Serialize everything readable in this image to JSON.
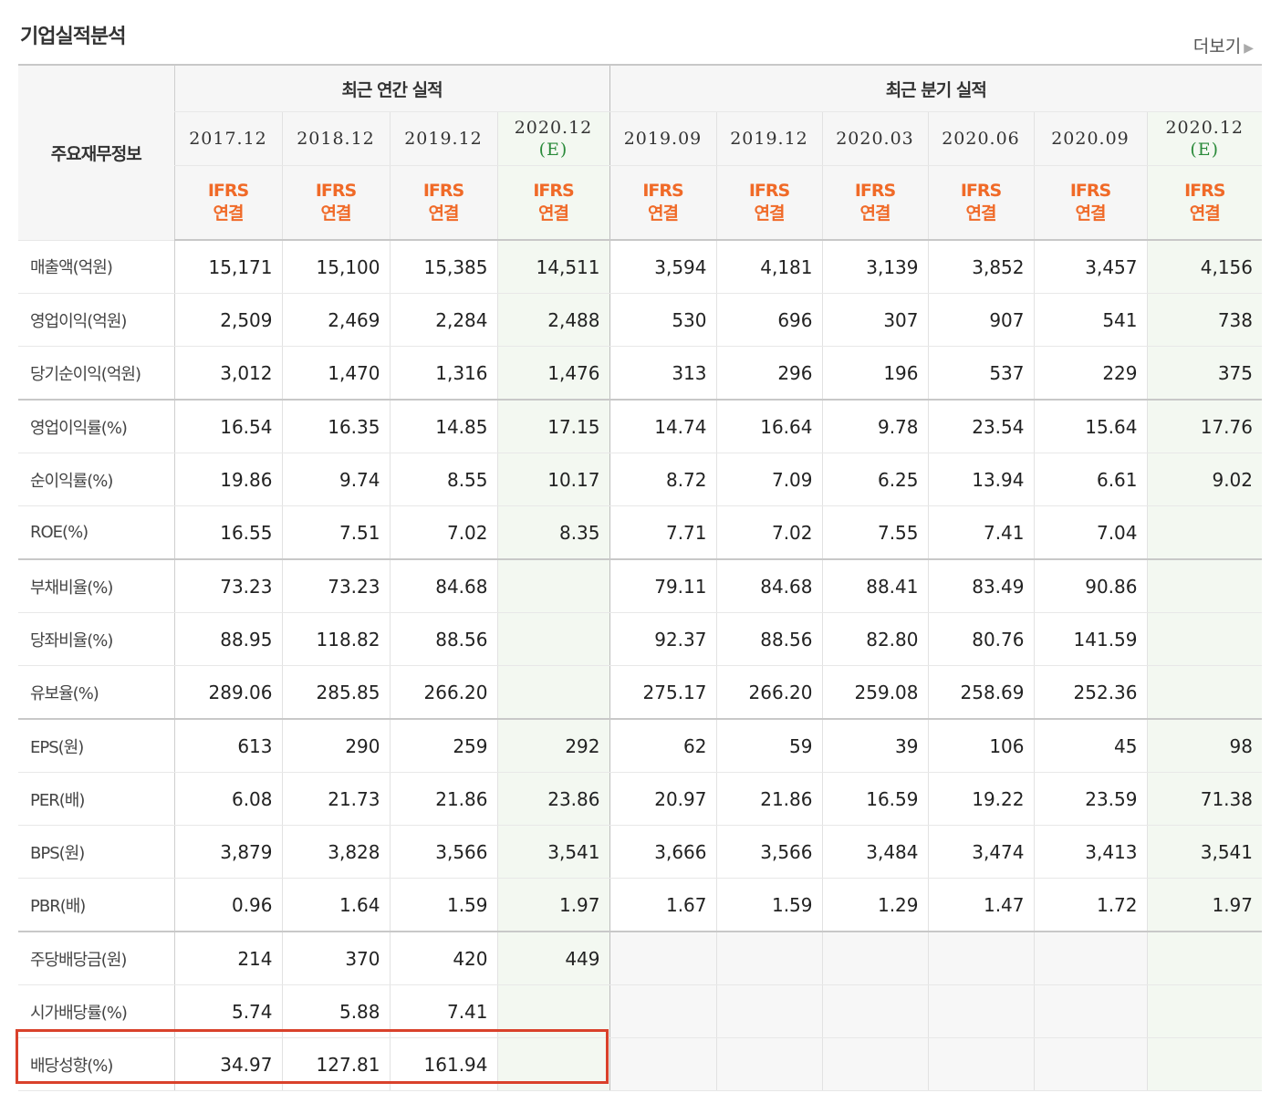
{
  "page": {
    "title": "기업실적분석",
    "more_label": "더보기"
  },
  "table": {
    "row_header_title": "주요재무정보",
    "group_annual": "최근 연간 실적",
    "group_quarter": "최근 분기 실적",
    "annual_periods": [
      "2017.12",
      "2018.12",
      "2019.12",
      "2020.12"
    ],
    "quarter_periods": [
      "2019.09",
      "2019.12",
      "2020.03",
      "2020.06",
      "2020.09",
      "2020.12"
    ],
    "estimate_mark": "(E)",
    "ifrs_line1": "IFRS",
    "ifrs_line2": "연결",
    "rows": [
      {
        "label": "매출액(억원)",
        "annual": [
          "15,171",
          "15,100",
          "15,385",
          "14,511"
        ],
        "quarter": [
          "3,594",
          "4,181",
          "3,139",
          "3,852",
          "3,457",
          "4,156"
        ]
      },
      {
        "label": "영업이익(억원)",
        "annual": [
          "2,509",
          "2,469",
          "2,284",
          "2,488"
        ],
        "quarter": [
          "530",
          "696",
          "307",
          "907",
          "541",
          "738"
        ]
      },
      {
        "label": "당기순이익(억원)",
        "annual": [
          "3,012",
          "1,470",
          "1,316",
          "1,476"
        ],
        "quarter": [
          "313",
          "296",
          "196",
          "537",
          "229",
          "375"
        ]
      },
      {
        "label": "영업이익률(%)",
        "annual": [
          "16.54",
          "16.35",
          "14.85",
          "17.15"
        ],
        "quarter": [
          "14.74",
          "16.64",
          "9.78",
          "23.54",
          "15.64",
          "17.76"
        ]
      },
      {
        "label": "순이익률(%)",
        "annual": [
          "19.86",
          "9.74",
          "8.55",
          "10.17"
        ],
        "quarter": [
          "8.72",
          "7.09",
          "6.25",
          "13.94",
          "6.61",
          "9.02"
        ]
      },
      {
        "label": "ROE(%)",
        "annual": [
          "16.55",
          "7.51",
          "7.02",
          "8.35"
        ],
        "quarter": [
          "7.71",
          "7.02",
          "7.55",
          "7.41",
          "7.04",
          ""
        ]
      },
      {
        "label": "부채비율(%)",
        "annual": [
          "73.23",
          "73.23",
          "84.68",
          ""
        ],
        "quarter": [
          "79.11",
          "84.68",
          "88.41",
          "83.49",
          "90.86",
          ""
        ]
      },
      {
        "label": "당좌비율(%)",
        "annual": [
          "88.95",
          "118.82",
          "88.56",
          ""
        ],
        "quarter": [
          "92.37",
          "88.56",
          "82.80",
          "80.76",
          "141.59",
          ""
        ]
      },
      {
        "label": "유보율(%)",
        "annual": [
          "289.06",
          "285.85",
          "266.20",
          ""
        ],
        "quarter": [
          "275.17",
          "266.20",
          "259.08",
          "258.69",
          "252.36",
          ""
        ]
      },
      {
        "label": "EPS(원)",
        "annual": [
          "613",
          "290",
          "259",
          "292"
        ],
        "quarter": [
          "62",
          "59",
          "39",
          "106",
          "45",
          "98"
        ]
      },
      {
        "label": "PER(배)",
        "annual": [
          "6.08",
          "21.73",
          "21.86",
          "23.86"
        ],
        "quarter": [
          "20.97",
          "21.86",
          "16.59",
          "19.22",
          "23.59",
          "71.38"
        ]
      },
      {
        "label": "BPS(원)",
        "annual": [
          "3,879",
          "3,828",
          "3,566",
          "3,541"
        ],
        "quarter": [
          "3,666",
          "3,566",
          "3,484",
          "3,474",
          "3,413",
          "3,541"
        ]
      },
      {
        "label": "PBR(배)",
        "annual": [
          "0.96",
          "1.64",
          "1.59",
          "1.97"
        ],
        "quarter": [
          "1.67",
          "1.59",
          "1.29",
          "1.47",
          "1.72",
          "1.97"
        ]
      },
      {
        "label": "주당배당금(원)",
        "annual": [
          "214",
          "370",
          "420",
          "449"
        ],
        "quarter": [
          "",
          "",
          "",
          "",
          "",
          ""
        ]
      },
      {
        "label": "시가배당률(%)",
        "annual": [
          "5.74",
          "5.88",
          "7.41",
          ""
        ],
        "quarter": [
          "",
          "",
          "",
          "",
          "",
          ""
        ]
      },
      {
        "label": "배당성향(%)",
        "annual": [
          "34.97",
          "127.81",
          "161.94",
          ""
        ],
        "quarter": [
          "",
          "",
          "",
          "",
          "",
          ""
        ]
      }
    ]
  },
  "colors": {
    "ifrs": "#f06a28",
    "estimate": "#2a8a3a",
    "highlight": "#d9412b"
  }
}
